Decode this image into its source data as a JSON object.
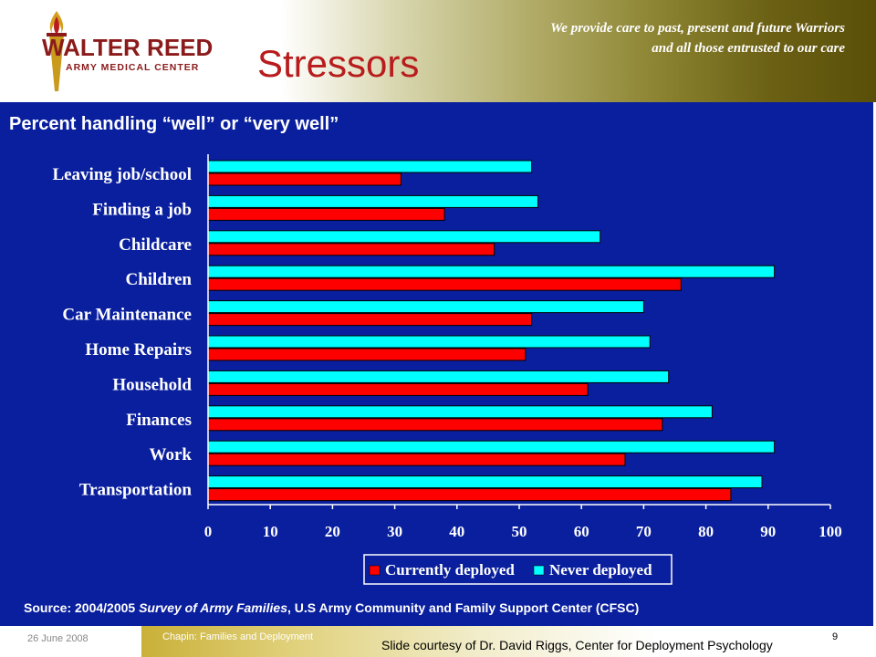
{
  "slide": {
    "title": "Stressors",
    "tagline_line1": "We provide care to past, present and future Warriors",
    "tagline_line2": "and all those entrusted to our care",
    "logo_line1": "WALTER REED",
    "logo_line2": "ARMY MEDICAL CENTER"
  },
  "footer": {
    "date": "26 June 2008",
    "presentation": "Chapin: Families and Deployment",
    "courtesy": "Slide courtesy of Dr. David Riggs, Center for Deployment Psychology",
    "page_number": "9"
  },
  "colors": {
    "background": "#0a1f9e",
    "currently_deployed": "#ff0000",
    "never_deployed": "#00ffff",
    "title": "#b81c1c"
  },
  "chart_data": {
    "type": "bar",
    "orientation": "horizontal",
    "title": "Percent handling “well” or “very well”",
    "source_prefix": "Source: 2004/2005 ",
    "source_italic": "Survey of Army Families",
    "source_suffix": ", U.S Army Community and Family Support Center (CFSC)",
    "categories": [
      "Leaving job/school",
      "Finding a job",
      "Childcare",
      "Children",
      "Car Maintenance",
      "Home Repairs",
      "Household",
      "Finances",
      "Work",
      "Transportation"
    ],
    "series": [
      {
        "name": "Never deployed",
        "color": "#00ffff",
        "values": [
          52,
          53,
          63,
          91,
          70,
          71,
          74,
          81,
          91,
          89
        ]
      },
      {
        "name": "Currently deployed",
        "color": "#ff0000",
        "values": [
          31,
          38,
          46,
          76,
          52,
          51,
          61,
          73,
          67,
          84
        ]
      }
    ],
    "xlim": [
      0,
      100
    ],
    "xticks": [
      0,
      10,
      20,
      30,
      40,
      50,
      60,
      70,
      80,
      90,
      100
    ],
    "legend_position": "bottom",
    "legend_order": [
      "Currently deployed",
      "Never deployed"
    ],
    "grid": false
  }
}
